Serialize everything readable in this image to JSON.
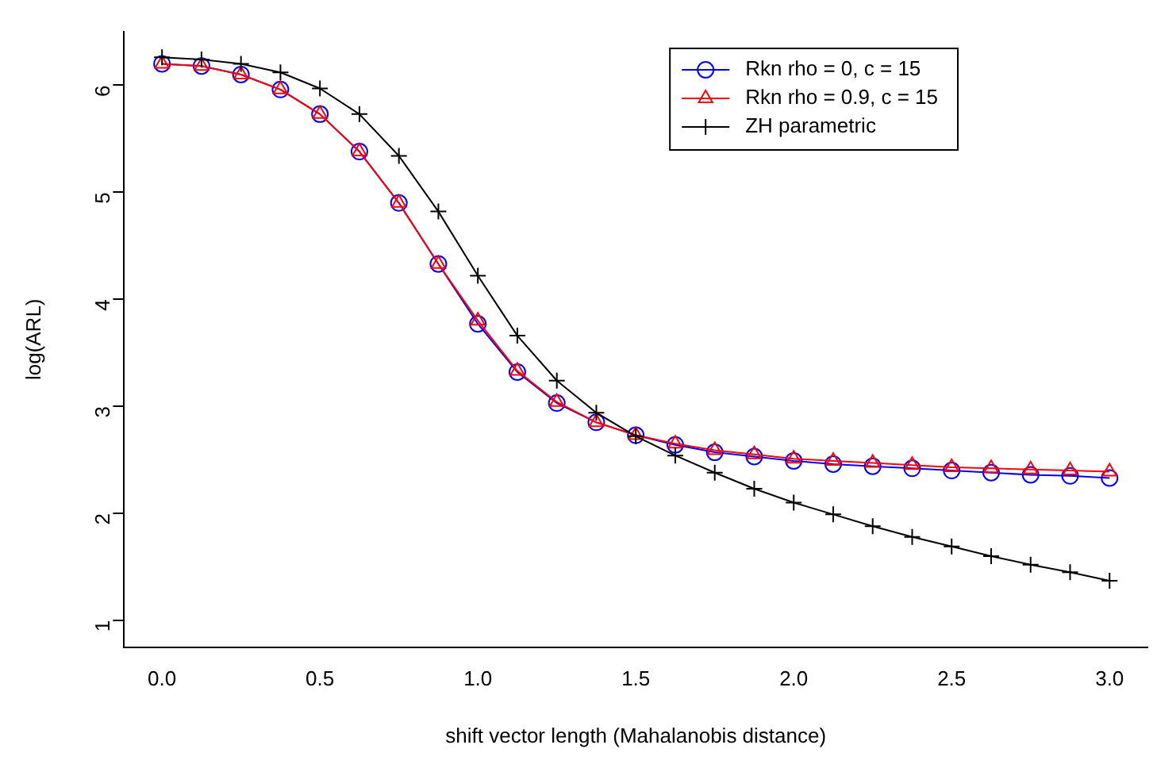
{
  "chart_data": {
    "type": "line",
    "xlabel": "shift vector length (Mahalanobis distance)",
    "ylabel": "log(ARL)",
    "x": [
      0,
      0.125,
      0.25,
      0.375,
      0.5,
      0.625,
      0.75,
      0.875,
      1,
      1.125,
      1.25,
      1.375,
      1.5,
      1.625,
      1.75,
      1.875,
      2,
      2.125,
      2.25,
      2.375,
      2.5,
      2.625,
      2.75,
      2.875,
      3
    ],
    "xlim": [
      -0.12,
      3.12
    ],
    "xticks": [
      {
        "value": 0,
        "label": "0.0"
      },
      {
        "value": 0.5,
        "label": "0.5"
      },
      {
        "value": 1,
        "label": "1.0"
      },
      {
        "value": 1.5,
        "label": "1.5"
      },
      {
        "value": 2,
        "label": "2.0"
      },
      {
        "value": 2.5,
        "label": "2.5"
      },
      {
        "value": 3,
        "label": "3.0"
      }
    ],
    "ylim": [
      0.75,
      6.5
    ],
    "yticks": [
      1,
      2,
      3,
      4,
      5,
      6
    ],
    "grid": false,
    "legend": "top right",
    "line_style": "solid",
    "series": [
      {
        "name": "Rkn rho = 0, c = 15",
        "color": "#0000ff",
        "marker": "circle",
        "values": [
          6.2,
          6.18,
          6.1,
          5.96,
          5.73,
          5.38,
          4.9,
          4.33,
          3.77,
          3.32,
          3.03,
          2.85,
          2.73,
          2.64,
          2.57,
          2.53,
          2.49,
          2.46,
          2.44,
          2.42,
          2.4,
          2.38,
          2.36,
          2.35,
          2.33
        ]
      },
      {
        "name": "Rkn rho = 0.9, c = 15",
        "color": "#ff0000",
        "marker": "triangle",
        "values": [
          6.2,
          6.18,
          6.1,
          5.96,
          5.73,
          5.38,
          4.9,
          4.33,
          3.8,
          3.33,
          3.04,
          2.85,
          2.73,
          2.65,
          2.59,
          2.55,
          2.51,
          2.49,
          2.47,
          2.45,
          2.43,
          2.42,
          2.41,
          2.4,
          2.39
        ]
      },
      {
        "name": "ZH parametric",
        "color": "#000000",
        "marker": "cross",
        "values": [
          6.26,
          6.24,
          6.2,
          6.12,
          5.97,
          5.73,
          5.34,
          4.82,
          4.22,
          3.66,
          3.24,
          2.94,
          2.72,
          2.54,
          2.38,
          2.23,
          2.1,
          1.99,
          1.88,
          1.78,
          1.69,
          1.6,
          1.52,
          1.45,
          1.37
        ]
      }
    ]
  }
}
